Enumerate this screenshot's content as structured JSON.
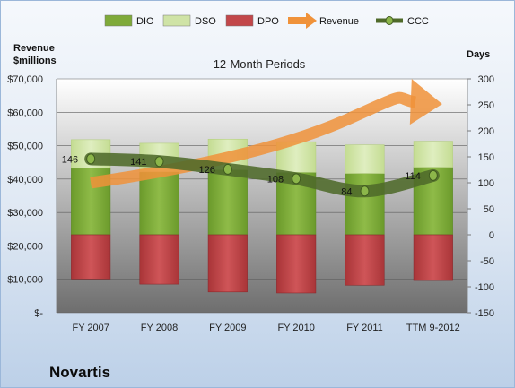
{
  "company": "Novartis",
  "chart_data": {
    "type": "bar",
    "title": "12-Month Periods",
    "left_axis_label": [
      "Revenue",
      "$millions"
    ],
    "right_axis_label": "Days",
    "categories": [
      "FY 2007",
      "FY 2008",
      "FY 2009",
      "FY 2010",
      "FY 2011",
      "TTM 9-2012"
    ],
    "left_axis": {
      "min": 0,
      "max": 70000,
      "ticks": [
        "$-",
        "$10,000",
        "$20,000",
        "$30,000",
        "$40,000",
        "$50,000",
        "$60,000",
        "$70,000"
      ]
    },
    "right_axis": {
      "min": -150,
      "max": 300,
      "ticks": [
        "-150",
        "-100",
        "-50",
        "0",
        "50",
        "100",
        "150",
        "200",
        "250",
        "300"
      ]
    },
    "legend": [
      {
        "name": "DIO",
        "kind": "bar"
      },
      {
        "name": "DSO",
        "kind": "bar"
      },
      {
        "name": "DPO",
        "kind": "bar"
      },
      {
        "name": "Revenue",
        "kind": "arrow"
      },
      {
        "name": "CCC",
        "kind": "line"
      }
    ],
    "series": [
      {
        "name": "DIO",
        "units": "days",
        "values": [
          128,
          121,
          125,
          120,
          118,
          130
        ]
      },
      {
        "name": "DSO",
        "units": "days",
        "values": [
          55,
          55,
          59,
          59,
          55,
          50
        ]
      },
      {
        "name": "DPO",
        "units": "days",
        "values": [
          -85,
          -95,
          -110,
          -112,
          -97,
          -88
        ]
      },
      {
        "name": "CCC",
        "units": "days",
        "values": [
          146,
          141,
          126,
          108,
          84,
          114
        ],
        "labels": [
          "146",
          "141",
          "126",
          "108",
          "84",
          "114"
        ]
      }
    ],
    "revenue_trend": "increasing",
    "colors": {
      "DIO": "#7faa3a",
      "DSO": "#cfe3a6",
      "DPO": "#c2474a",
      "Revenue": "#f0923a",
      "CCC": "#4f6a2a"
    },
    "legend_position": "top",
    "grid": true
  }
}
